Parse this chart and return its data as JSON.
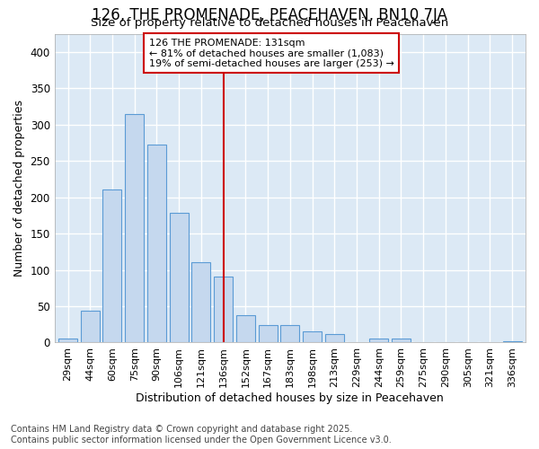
{
  "title": "126, THE PROMENADE, PEACEHAVEN, BN10 7JA",
  "subtitle": "Size of property relative to detached houses in Peacehaven",
  "xlabel": "Distribution of detached houses by size in Peacehaven",
  "ylabel": "Number of detached properties",
  "footer_line1": "Contains HM Land Registry data © Crown copyright and database right 2025.",
  "footer_line2": "Contains public sector information licensed under the Open Government Licence v3.0.",
  "annotation_line1": "126 THE PROMENADE: 131sqm",
  "annotation_line2": "← 81% of detached houses are smaller (1,083)",
  "annotation_line3": "19% of semi-detached houses are larger (253) →",
  "categories": [
    "29sqm",
    "44sqm",
    "60sqm",
    "75sqm",
    "90sqm",
    "106sqm",
    "121sqm",
    "136sqm",
    "152sqm",
    "167sqm",
    "183sqm",
    "198sqm",
    "213sqm",
    "229sqm",
    "244sqm",
    "259sqm",
    "275sqm",
    "290sqm",
    "305sqm",
    "321sqm",
    "336sqm"
  ],
  "values": [
    5,
    44,
    211,
    315,
    272,
    178,
    110,
    91,
    38,
    24,
    24,
    15,
    12,
    0,
    5,
    5,
    1,
    0,
    0,
    0,
    2
  ],
  "bar_color": "#c5d8ee",
  "bar_edgecolor": "#5b9bd5",
  "vline_color": "#cc0000",
  "vline_index": 7,
  "plot_bg_color": "#dce9f5",
  "fig_bg_color": "#ffffff",
  "ylim": [
    0,
    425
  ],
  "yticks": [
    0,
    50,
    100,
    150,
    200,
    250,
    300,
    350,
    400
  ],
  "title_fontsize": 12,
  "subtitle_fontsize": 9.5,
  "axis_label_fontsize": 9,
  "tick_fontsize": 8.5,
  "xtick_fontsize": 8,
  "annot_fontsize": 8,
  "footer_fontsize": 7
}
